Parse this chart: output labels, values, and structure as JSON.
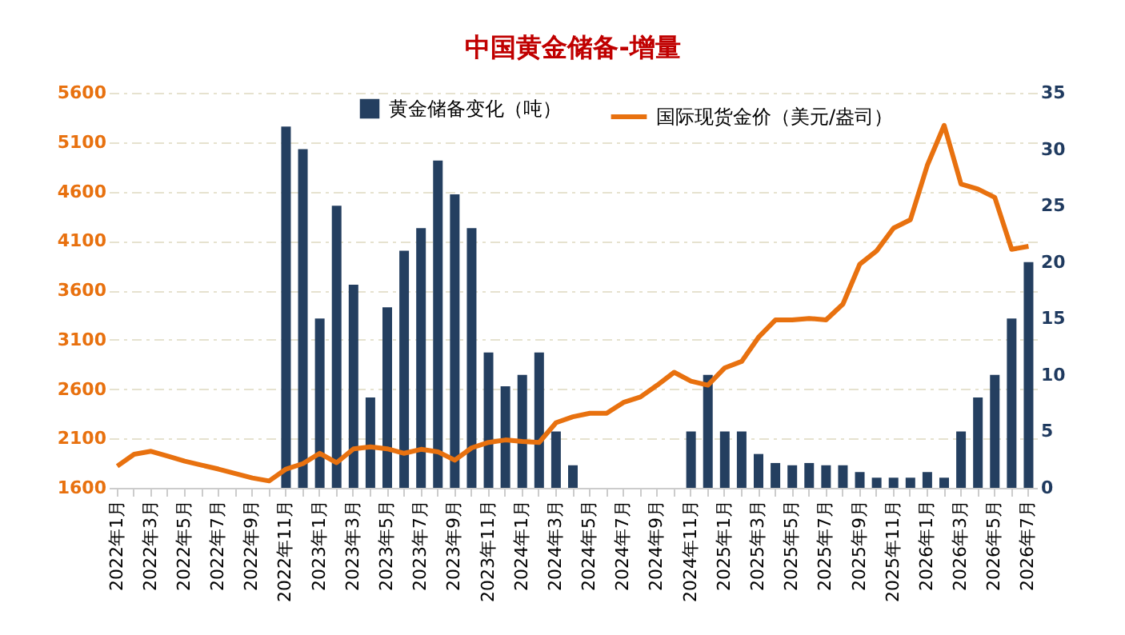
{
  "chart_data": {
    "type": "bar",
    "title": "中国黄金储备-增量",
    "categories": [
      "2022年1月",
      null,
      "2022年3月",
      null,
      "2022年5月",
      null,
      "2022年7月",
      null,
      "2022年9月",
      null,
      "2022年11月",
      null,
      "2023年1月",
      null,
      "2023年3月",
      null,
      "2023年5月",
      null,
      "2023年7月",
      null,
      "2023年9月",
      null,
      "2023年11月",
      null,
      "2024年1月",
      null,
      "2024年3月",
      null,
      "2024年5月",
      null,
      "2024年7月",
      null,
      "2024年9月",
      null,
      "2024年11月",
      null,
      "2025年1月",
      null,
      "2025年3月",
      null,
      "2025年5月",
      null,
      "2025年7月",
      null,
      "2025年9月",
      null,
      "2025年11月",
      null,
      "2026年1月",
      null,
      "2026年3月",
      null,
      "2026年5月",
      null,
      "2026年7月"
    ],
    "series": [
      {
        "name": "黄金储备变化（吨）",
        "axis": "y2",
        "color": "#243f60",
        "values": [
          0,
          0,
          0,
          0,
          0,
          0,
          0,
          0,
          0,
          0,
          32,
          30,
          15,
          25,
          18,
          8,
          16,
          21,
          23,
          29,
          26,
          23,
          12,
          9,
          10,
          12,
          5,
          2,
          0,
          0,
          0,
          0,
          0,
          0,
          5,
          10,
          5,
          5,
          3,
          2.2,
          2,
          2.2,
          2,
          2,
          1.4,
          0.9,
          0.9,
          0.9,
          1.4,
          0.9,
          5,
          8,
          10,
          15,
          20
        ]
      },
      {
        "name": "国际现货金价（美元/盎司）",
        "type": "line",
        "color": "#e8710f",
        "values": [
          1820,
          1940,
          1970,
          1920,
          1870,
          1830,
          1790,
          1745,
          1700,
          1670,
          1790,
          1845,
          1950,
          1855,
          1995,
          2015,
          1995,
          1950,
          1990,
          1965,
          1880,
          2005,
          2060,
          2085,
          2070,
          2060,
          2260,
          2320,
          2355,
          2355,
          2465,
          2520,
          2640,
          2770,
          2680,
          2640,
          2815,
          2880,
          3125,
          3300,
          3300,
          3315,
          3300,
          3460,
          3865,
          4000,
          4230,
          4315,
          4865,
          5270,
          4675,
          4625,
          4540,
          4015,
          4045
        ]
      }
    ],
    "ylim": [
      1600,
      5600
    ],
    "yticks": [
      1600,
      2100,
      2600,
      3100,
      3600,
      4100,
      4600,
      5100,
      5600
    ],
    "y2lim": [
      0,
      35
    ],
    "y2ticks": [
      0,
      5,
      10,
      15,
      20,
      25,
      30,
      35
    ],
    "grid": "y",
    "legend": "top"
  }
}
